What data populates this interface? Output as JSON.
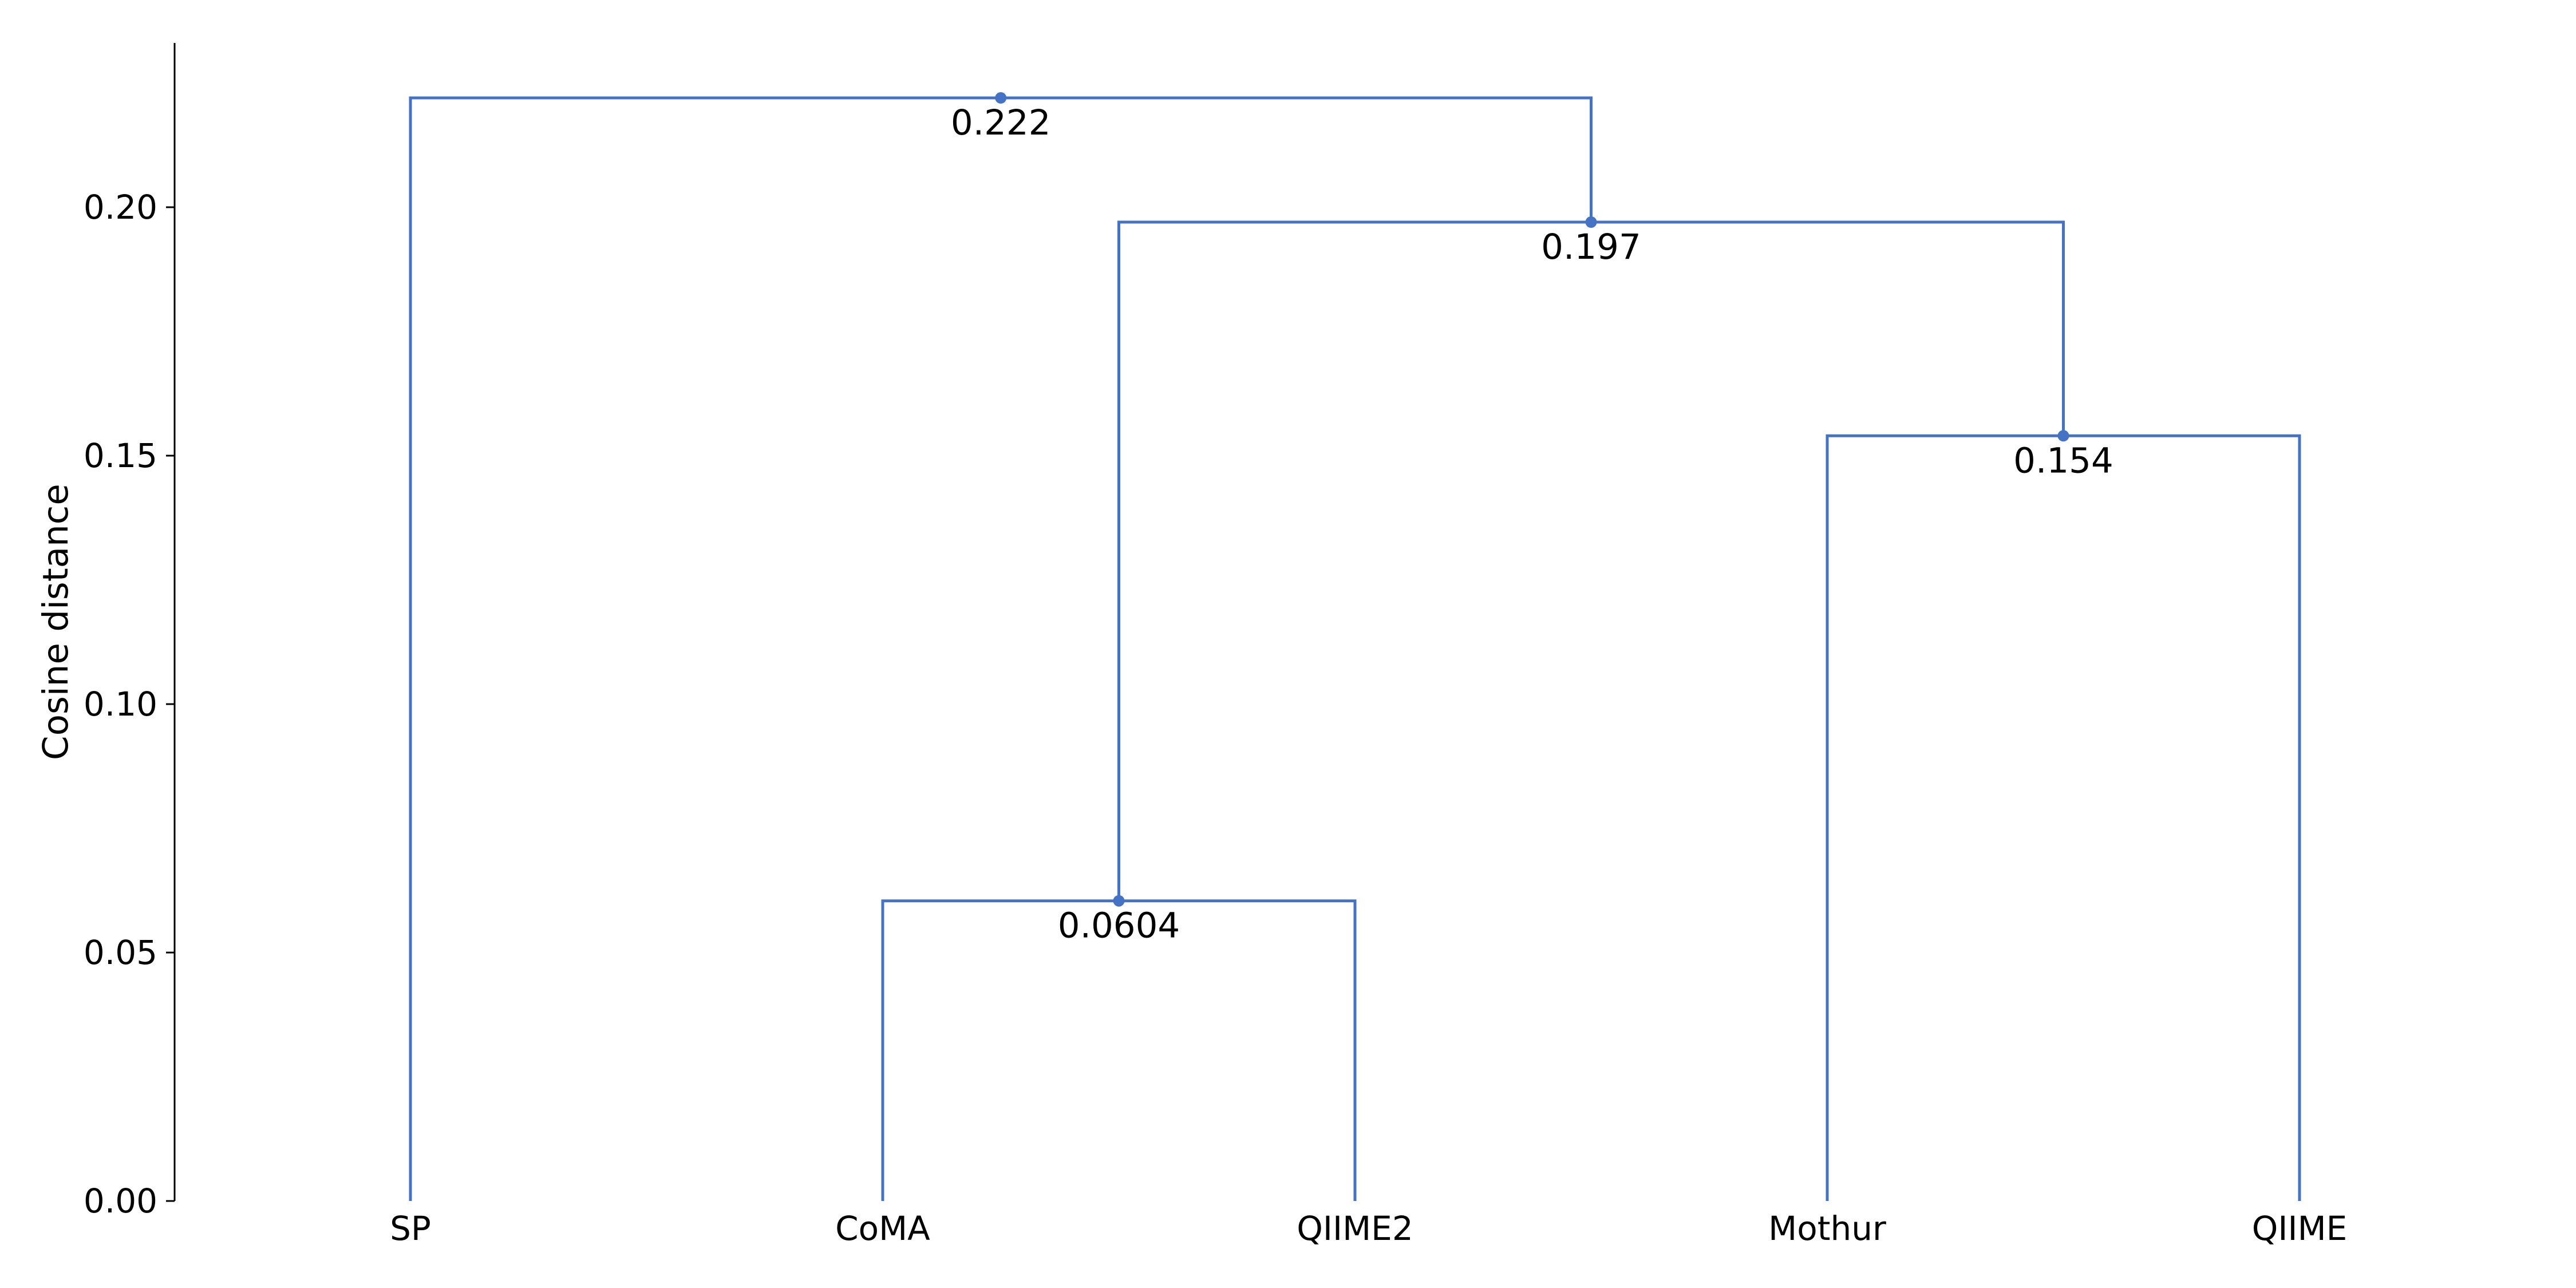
{
  "chart_data": {
    "type": "dendrogram",
    "title": "",
    "xlabel": "",
    "ylabel": "Cosine distance",
    "ylim": [
      0,
      0.233
    ],
    "yticks": [
      0.0,
      0.05,
      0.1,
      0.15,
      0.2
    ],
    "ytick_labels": [
      "0.00",
      "0.05",
      "0.10",
      "0.15",
      "0.20"
    ],
    "grid": false,
    "line_color": "#4472c4",
    "leaves": [
      "SP",
      "CoMA",
      "QIIME2",
      "Mothur",
      "QIIME"
    ],
    "merges": [
      {
        "left": "CoMA",
        "right": "QIIME2",
        "height": 0.0604,
        "label": "0.0604"
      },
      {
        "left": "Mothur",
        "right": "QIIME",
        "height": 0.154,
        "label": "0.154"
      },
      {
        "left": "CoMA+QIIME2",
        "right": "Mothur+QIIME",
        "height": 0.197,
        "label": "0.197"
      },
      {
        "left": "SP",
        "right": "CoMA+QIIME2+Mothur+QIIME",
        "height": 0.222,
        "label": "0.222"
      }
    ]
  }
}
